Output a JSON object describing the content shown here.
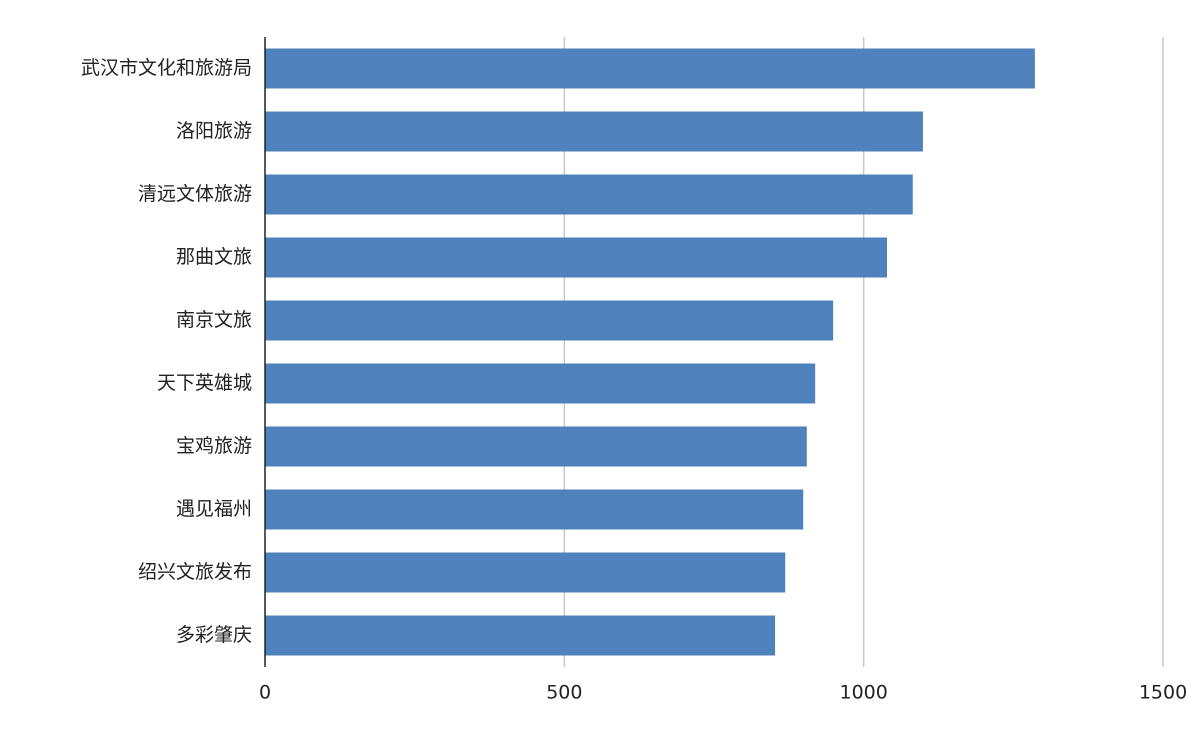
{
  "chart_data": {
    "type": "barh",
    "categories": [
      "武汉市文化和旅游局",
      "洛阳旅游",
      "清远文体旅游",
      "那曲文旅",
      "南京文旅",
      "天下英雄城",
      "宝鸡旅游",
      "遇见福州",
      "绍兴文旅发布",
      "多彩肇庆"
    ],
    "values": [
      1286,
      1099,
      1082,
      1039,
      949,
      919,
      905,
      899,
      869,
      852
    ],
    "color": "#4f81bd",
    "xlim": [
      0,
      1500
    ],
    "xticks": [
      0,
      500,
      1000,
      1500
    ],
    "grid": true
  }
}
